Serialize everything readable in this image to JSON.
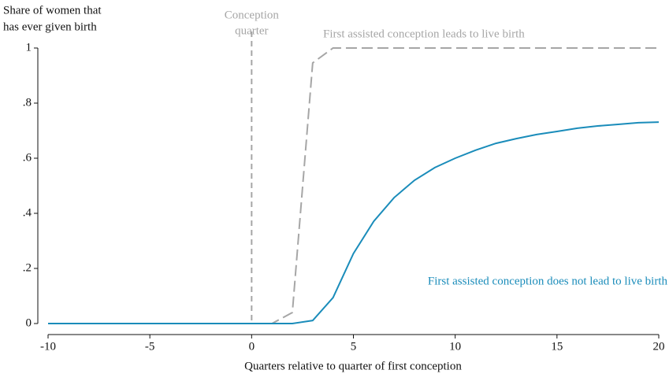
{
  "chart_data": {
    "type": "line",
    "ylabel": [
      "Share of women that",
      "has ever given birth"
    ],
    "xlabel": "Quarters relative to quarter of first conception",
    "x": [
      -10,
      -9,
      -8,
      -7,
      -6,
      -5,
      -4,
      -3,
      -2,
      -1,
      0,
      1,
      2,
      3,
      4,
      5,
      6,
      7,
      8,
      9,
      10,
      11,
      12,
      13,
      14,
      15,
      16,
      17,
      18,
      19,
      20
    ],
    "series": [
      {
        "name": "First assisted conception leads to live birth",
        "color": "#a6a6a6",
        "dash": true,
        "values": [
          0,
          0,
          0,
          0,
          0,
          0,
          0,
          0,
          0,
          0,
          0,
          0,
          0.04,
          0.946,
          1,
          1,
          1,
          1,
          1,
          1,
          1,
          1,
          1,
          1,
          1,
          1,
          1,
          1,
          1,
          1,
          1
        ]
      },
      {
        "name": "First assisted conception does not lead to live birth",
        "color": "#1a8cba",
        "dash": false,
        "values": [
          0,
          0,
          0,
          0,
          0,
          0,
          0,
          0,
          0,
          0,
          0,
          0,
          0,
          0.011,
          0.094,
          0.254,
          0.371,
          0.457,
          0.52,
          0.566,
          0.6,
          0.629,
          0.654,
          0.671,
          0.686,
          0.697,
          0.709,
          0.717,
          0.723,
          0.729,
          0.731
        ]
      }
    ],
    "vline": {
      "x": 0,
      "label": [
        "Conception",
        "quarter"
      ],
      "color": "#a6a6a6"
    },
    "xlim": [
      -10,
      20
    ],
    "xticks": [
      -10,
      -5,
      0,
      5,
      10,
      15,
      20
    ],
    "ylim": [
      0,
      1
    ],
    "yticks": [
      0,
      {
        "value": 0.2,
        "label": ".2"
      },
      {
        "value": 0.4,
        "label": ".4"
      },
      {
        "value": 0.6,
        "label": ".6"
      },
      {
        "value": 0.8,
        "label": ".8"
      },
      1
    ],
    "grid": false
  }
}
